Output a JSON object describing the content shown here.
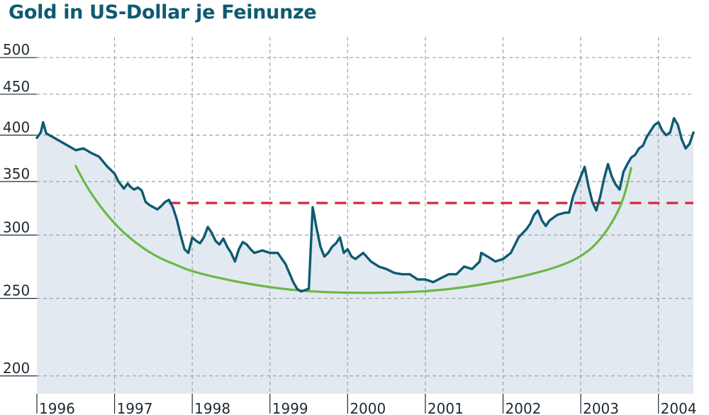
{
  "chart_data": {
    "type": "line",
    "title": "Gold in US-Dollar je Feinunze",
    "xlabel": "",
    "ylabel": "",
    "yscale": "log",
    "ylim": [
      190,
      520
    ],
    "xlim": [
      1996.0,
      2004.45
    ],
    "yticks": [
      200,
      250,
      300,
      350,
      400,
      450,
      500
    ],
    "xticks": [
      1996,
      1997,
      1998,
      1999,
      2000,
      2001,
      2002,
      2003,
      2004
    ],
    "grid": true,
    "legend": "none",
    "series": [
      {
        "color": "#0e5a72",
        "fill": "#e3e9f1",
        "x": [
          1996.0,
          1996.05,
          1996.08,
          1996.12,
          1996.2,
          1996.3,
          1996.4,
          1996.5,
          1996.6,
          1996.7,
          1996.8,
          1996.9,
          1997.0,
          1997.05,
          1997.12,
          1997.17,
          1997.2,
          1997.25,
          1997.3,
          1997.35,
          1997.4,
          1997.45,
          1997.5,
          1997.55,
          1997.6,
          1997.65,
          1997.7,
          1997.75,
          1997.8,
          1997.85,
          1997.9,
          1997.95,
          1998.0,
          1998.05,
          1998.1,
          1998.15,
          1998.2,
          1998.25,
          1998.3,
          1998.35,
          1998.4,
          1998.45,
          1998.5,
          1998.55,
          1998.6,
          1998.65,
          1998.7,
          1998.75,
          1998.8,
          1998.9,
          1999.0,
          1999.1,
          1999.2,
          1999.3,
          1999.35,
          1999.4,
          1999.45,
          1999.5,
          1999.55,
          1999.6,
          1999.65,
          1999.7,
          1999.75,
          1999.8,
          1999.85,
          1999.9,
          1999.95,
          2000.0,
          2000.05,
          2000.1,
          2000.2,
          2000.3,
          2000.4,
          2000.5,
          2000.6,
          2000.7,
          2000.8,
          2000.9,
          2001.0,
          2001.1,
          2001.2,
          2001.3,
          2001.4,
          2001.5,
          2001.6,
          2001.7,
          2001.72,
          2001.8,
          2001.9,
          2002.0,
          2002.1,
          2002.2,
          2002.3,
          2002.35,
          2002.4,
          2002.45,
          2002.5,
          2002.55,
          2002.6,
          2002.7,
          2002.8,
          2002.85,
          2002.9,
          2002.95,
          2003.0,
          2003.05,
          2003.1,
          2003.15,
          2003.2,
          2003.25,
          2003.3,
          2003.35,
          2003.4,
          2003.45,
          2003.5,
          2003.55,
          2003.6,
          2003.65,
          2003.7,
          2003.75,
          2003.8,
          2003.85,
          2003.9,
          2003.95,
          2004.0,
          2004.05,
          2004.1,
          2004.15,
          2004.2,
          2004.25,
          2004.3,
          2004.35,
          2004.4,
          2004.45
        ],
        "y": [
          397,
          403,
          415,
          402,
          398,
          393,
          388,
          383,
          385,
          380,
          376,
          366,
          358,
          350,
          343,
          348,
          345,
          342,
          344,
          341,
          330,
          327,
          325,
          323,
          326,
          330,
          332,
          325,
          314,
          300,
          288,
          285,
          298,
          295,
          293,
          298,
          307,
          302,
          295,
          292,
          297,
          290,
          285,
          278,
          288,
          294,
          292,
          288,
          285,
          287,
          285,
          285,
          276,
          262,
          257,
          255,
          256,
          257,
          325,
          306,
          290,
          282,
          285,
          290,
          293,
          298,
          285,
          288,
          282,
          280,
          285,
          278,
          274,
          272,
          269,
          268,
          268,
          264,
          264,
          262,
          265,
          268,
          268,
          274,
          272,
          278,
          285,
          282,
          278,
          280,
          285,
          298,
          305,
          310,
          318,
          322,
          313,
          308,
          313,
          318,
          320,
          320,
          335,
          345,
          355,
          365,
          345,
          330,
          322,
          335,
          353,
          368,
          355,
          347,
          342,
          360,
          368,
          375,
          378,
          385,
          388,
          398,
          405,
          412,
          415,
          405,
          400,
          403,
          420,
          412,
          395,
          385,
          390,
          403
        ]
      }
    ],
    "annotations": [
      {
        "type": "resistance-line",
        "style": "dashed",
        "color": "#d7263d",
        "x": [
          1997.7,
          2004.45
        ],
        "y": [
          329,
          329
        ]
      },
      {
        "type": "rounding-bottom-curve",
        "color": "#6ab947",
        "x": [
          1996.5,
          1996.6,
          1996.8,
          1997.0,
          1997.2,
          1997.5,
          1997.8,
          1998.0,
          1998.5,
          1999.0,
          1999.5,
          2000.0,
          2000.5,
          2001.0,
          2001.5,
          2002.0,
          2002.5,
          2002.8,
          2003.0,
          2003.2,
          2003.4,
          2003.55,
          2003.65
        ],
        "y": [
          366,
          350,
          327,
          310,
          297,
          283,
          275,
          270,
          263,
          258,
          255,
          254,
          254,
          255,
          258,
          263,
          270,
          276,
          282,
          292,
          310,
          332,
          364
        ]
      }
    ]
  }
}
